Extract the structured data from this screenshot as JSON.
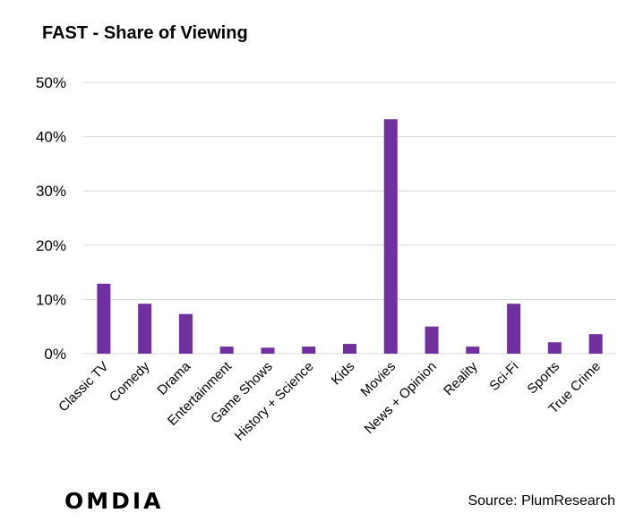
{
  "chart_data": {
    "type": "bar",
    "title": "FAST - Share of Viewing",
    "xlabel": "",
    "ylabel": "",
    "ylim": [
      0,
      0.5
    ],
    "yticks": [
      0,
      0.1,
      0.2,
      0.3,
      0.4,
      0.5
    ],
    "ytick_labels": [
      "0%",
      "10%",
      "20%",
      "30%",
      "40%",
      "50%"
    ],
    "grid": true,
    "legend": "none",
    "bar_color": "#7030A0",
    "categories": [
      "Classic TV",
      "Comedy",
      "Drama",
      "Entertainment",
      "Game Shows",
      "History + Science",
      "Kids",
      "Movies",
      "News + Opinion",
      "Reality",
      "Sci-Fi",
      "Sports",
      "True Crime"
    ],
    "values": [
      0.129,
      0.092,
      0.073,
      0.013,
      0.011,
      0.013,
      0.018,
      0.432,
      0.05,
      0.013,
      0.092,
      0.021,
      0.036
    ]
  },
  "footer": {
    "source": "Source: PlumResearch",
    "logo": "OMDIA"
  }
}
